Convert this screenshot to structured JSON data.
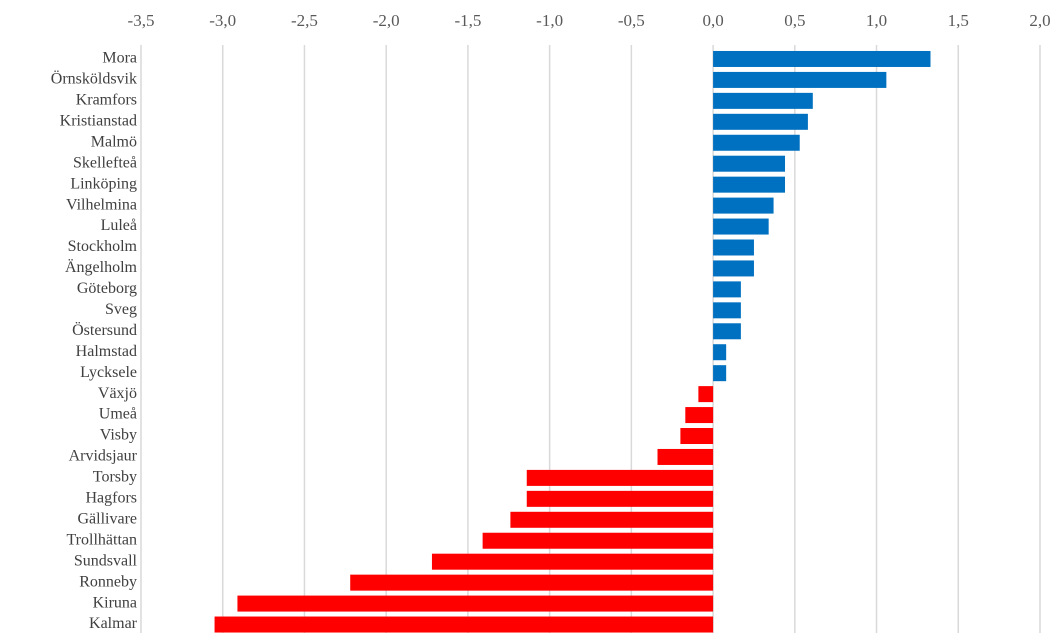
{
  "chart_data": {
    "type": "hbar",
    "categories": [
      "Mora",
      "Örnsköldsvik",
      "Kramfors",
      "Kristianstad",
      "Malmö",
      "Skellefteå",
      "Linköping",
      "Vilhelmina",
      "Luleå",
      "Stockholm",
      "Ängelholm",
      "Göteborg",
      "Sveg",
      "Östersund",
      "Halmstad",
      "Lycksele",
      "Växjö",
      "Umeå",
      "Visby",
      "Arvidsjaur",
      "Torsby",
      "Hagfors",
      "Gällivare",
      "Trollhättan",
      "Sundsvall",
      "Ronneby",
      "Kiruna",
      "Kalmar"
    ],
    "values": [
      1.33,
      1.06,
      0.61,
      0.58,
      0.53,
      0.44,
      0.44,
      0.37,
      0.34,
      0.25,
      0.25,
      0.17,
      0.17,
      0.17,
      0.08,
      0.08,
      -0.09,
      -0.17,
      -0.2,
      -0.34,
      -1.14,
      -1.14,
      -1.24,
      -1.41,
      -1.72,
      -2.22,
      -2.91,
      -3.05
    ],
    "color_positive": "#0070c0",
    "color_negative": "#ff0000",
    "xlim": [
      -3.5,
      2.0
    ],
    "xticks": [
      {
        "value": -3.5,
        "label": "-3,5"
      },
      {
        "value": -3.0,
        "label": "-3,0"
      },
      {
        "value": -2.5,
        "label": "-2,5"
      },
      {
        "value": -2.0,
        "label": "-2,0"
      },
      {
        "value": -1.5,
        "label": "-1,5"
      },
      {
        "value": -1.0,
        "label": "-1,0"
      },
      {
        "value": -0.5,
        "label": "-0,5"
      },
      {
        "value": 0,
        "label": "0,0"
      },
      {
        "value": 0.5,
        "label": "0,5"
      },
      {
        "value": 1.0,
        "label": "1,0"
      },
      {
        "value": 1.5,
        "label": "1,5"
      },
      {
        "value": 2.0,
        "label": "2,0"
      }
    ],
    "grid": true
  }
}
